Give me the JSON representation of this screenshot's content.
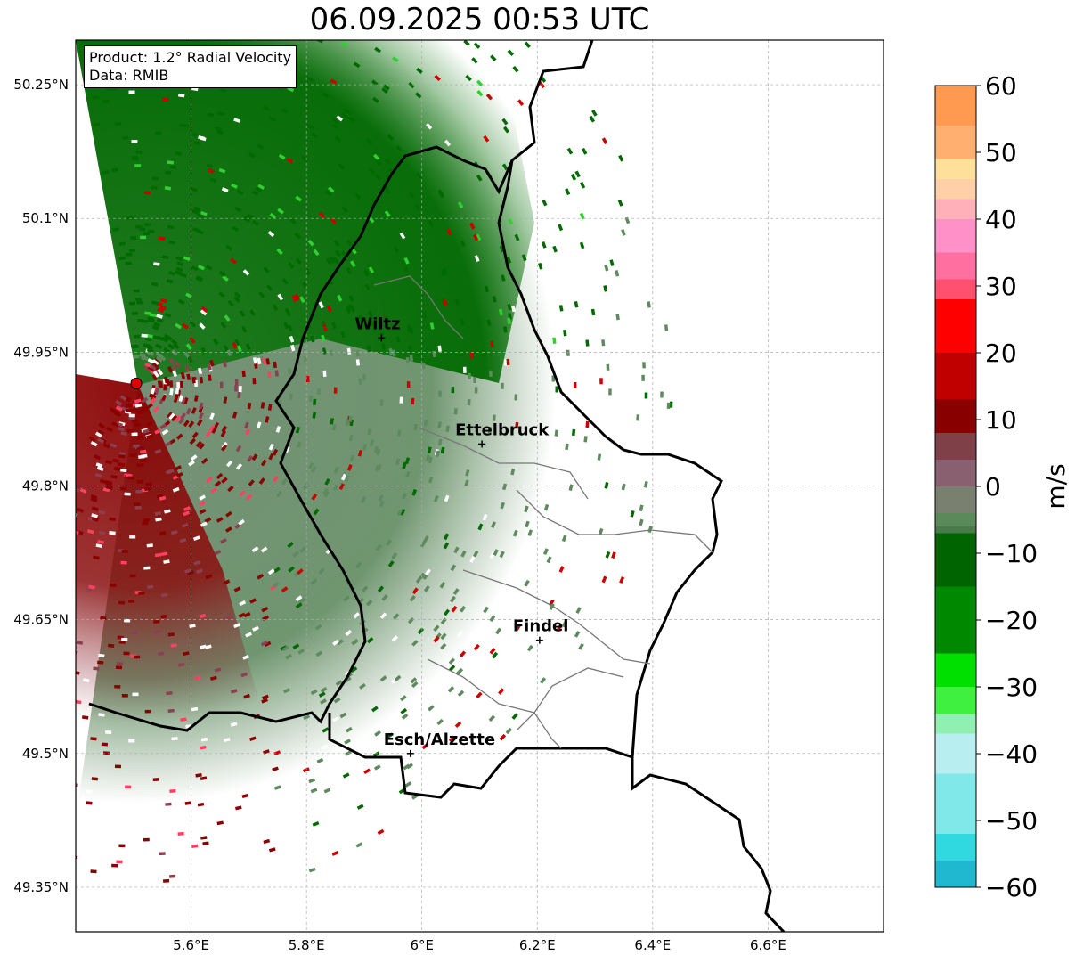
{
  "title": "06.09.2025 00:53 UTC",
  "info": {
    "product": "Product: 1.2° Radial Velocity",
    "source": "Data: RMIB"
  },
  "map": {
    "lon_range": [
      5.4,
      6.8
    ],
    "lat_range": [
      49.3,
      50.3
    ],
    "x_ticks": [
      {
        "value": 5.6,
        "label": "5.6°E"
      },
      {
        "value": 5.8,
        "label": "5.8°E"
      },
      {
        "value": 6.0,
        "label": "6°E"
      },
      {
        "value": 6.2,
        "label": "6.2°E"
      },
      {
        "value": 6.4,
        "label": "6.4°E"
      },
      {
        "value": 6.6,
        "label": "6.6°E"
      }
    ],
    "y_ticks": [
      {
        "value": 50.25,
        "label": "50.25°N"
      },
      {
        "value": 50.1,
        "label": "50.1°N"
      },
      {
        "value": 49.95,
        "label": "49.95°N"
      },
      {
        "value": 49.8,
        "label": "49.8°N"
      },
      {
        "value": 49.65,
        "label": "49.65°N"
      },
      {
        "value": 49.5,
        "label": "49.5°N"
      },
      {
        "value": 49.35,
        "label": "49.35°N"
      }
    ],
    "grid": true,
    "radar_site": {
      "lon": 5.505,
      "lat": 49.915,
      "color": "#e00000"
    },
    "cities": [
      {
        "name": "Wiltz",
        "lon": 5.93,
        "lat": 49.966
      },
      {
        "name": "Ettelbruck",
        "lon": 6.104,
        "lat": 49.847
      },
      {
        "name": "Findel",
        "lon": 6.204,
        "lat": 49.627
      },
      {
        "name": "Esch/Alzette",
        "lon": 5.98,
        "lat": 49.5
      }
    ]
  },
  "colorbar": {
    "label": "m/s",
    "min": -60,
    "max": 60,
    "ticks": [
      {
        "value": 60,
        "label": "60"
      },
      {
        "value": 50,
        "label": "50"
      },
      {
        "value": 40,
        "label": "40"
      },
      {
        "value": 30,
        "label": "30"
      },
      {
        "value": 20,
        "label": "20"
      },
      {
        "value": 10,
        "label": "10"
      },
      {
        "value": 0,
        "label": "0"
      },
      {
        "value": -10,
        "label": "−10"
      },
      {
        "value": -20,
        "label": "−20"
      },
      {
        "value": -30,
        "label": "−30"
      },
      {
        "value": -40,
        "label": "−40"
      },
      {
        "value": -50,
        "label": "−50"
      },
      {
        "value": -60,
        "label": "−60"
      }
    ],
    "stops": [
      {
        "value": 60,
        "color": "#ff9a50"
      },
      {
        "value": 54,
        "color": "#ffb070"
      },
      {
        "value": 49,
        "color": "#ffe09a"
      },
      {
        "value": 46,
        "color": "#ffd0a8"
      },
      {
        "value": 43,
        "color": "#ffb0b8"
      },
      {
        "value": 40,
        "color": "#ff90c8"
      },
      {
        "value": 35,
        "color": "#ff70a0"
      },
      {
        "value": 31,
        "color": "#ff5070"
      },
      {
        "value": 28,
        "color": "#ff0000"
      },
      {
        "value": 20,
        "color": "#c00000"
      },
      {
        "value": 13,
        "color": "#880000"
      },
      {
        "value": 8,
        "color": "#804048"
      },
      {
        "value": 4,
        "color": "#886070"
      },
      {
        "value": 0,
        "color": "#7a8070"
      },
      {
        "value": -4,
        "color": "#5a8a5a"
      },
      {
        "value": -6,
        "color": "#4a7a4a"
      },
      {
        "value": -7,
        "color": "#006400"
      },
      {
        "value": -15,
        "color": "#008800"
      },
      {
        "value": -25,
        "color": "#00e000"
      },
      {
        "value": -30,
        "color": "#40f040"
      },
      {
        "value": -34,
        "color": "#90f0b0"
      },
      {
        "value": -37,
        "color": "#b8eef0"
      },
      {
        "value": -43,
        "color": "#80e8e8"
      },
      {
        "value": -52,
        "color": "#30d8e0"
      },
      {
        "value": -56,
        "color": "#20b8d0"
      },
      {
        "value": -60,
        "color": "#2080c8"
      }
    ]
  }
}
